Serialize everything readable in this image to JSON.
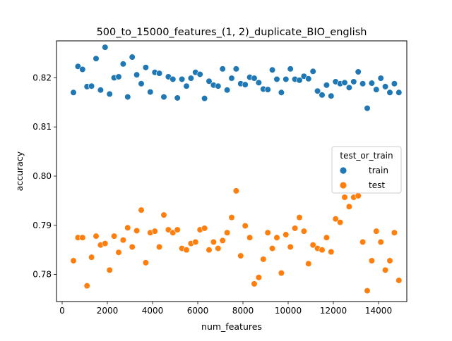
{
  "chart_data": {
    "type": "scatter",
    "title": "500_to_15000_features_(1, 2)_duplicate_BIO_english",
    "xlabel": "num_features",
    "ylabel": "accuracy",
    "xlim": [
      -250,
      15250
    ],
    "ylim": [
      0.7745,
      0.8275
    ],
    "xticks": [
      0,
      2000,
      4000,
      6000,
      8000,
      10000,
      12000,
      14000
    ],
    "xtick_labels": [
      "0",
      "2000",
      "4000",
      "6000",
      "8000",
      "10000",
      "12000",
      "14000"
    ],
    "yticks": [
      0.78,
      0.79,
      0.8,
      0.81,
      0.82
    ],
    "ytick_labels": [
      "0.78",
      "0.79",
      "0.80",
      "0.81",
      "0.82"
    ],
    "grid": false,
    "legend": {
      "title": "test_or_train",
      "placement": "center-right",
      "entries": [
        "train",
        "test"
      ]
    },
    "x": [
      500,
      700,
      900,
      1100,
      1300,
      1500,
      1700,
      1900,
      2100,
      2300,
      2500,
      2700,
      2900,
      3100,
      3300,
      3500,
      3700,
      3900,
      4100,
      4300,
      4500,
      4700,
      4900,
      5100,
      5300,
      5500,
      5700,
      5900,
      6100,
      6300,
      6500,
      6700,
      6900,
      7100,
      7300,
      7500,
      7700,
      7900,
      8100,
      8300,
      8500,
      8700,
      8900,
      9100,
      9300,
      9500,
      9700,
      9900,
      10100,
      10300,
      10500,
      10700,
      10900,
      11100,
      11300,
      11500,
      11700,
      11900,
      12100,
      12300,
      12500,
      12700,
      12900,
      13100,
      13300,
      13500,
      13700,
      13900,
      14100,
      14300,
      14500,
      14700,
      14900
    ],
    "series": [
      {
        "name": "train",
        "color": "#1f77b4",
        "values": [
          0.817,
          0.8223,
          0.8217,
          0.8182,
          0.8183,
          0.8239,
          0.8175,
          0.8262,
          0.8167,
          0.82,
          0.8202,
          0.8228,
          0.8161,
          0.8242,
          0.8206,
          0.8188,
          0.8221,
          0.8171,
          0.8211,
          0.8209,
          0.8161,
          0.8202,
          0.8197,
          0.8159,
          0.8197,
          0.8183,
          0.8199,
          0.8211,
          0.8207,
          0.8158,
          0.8193,
          0.8185,
          0.8183,
          0.8218,
          0.8175,
          0.8199,
          0.8218,
          0.8188,
          0.8186,
          0.8201,
          0.8199,
          0.819,
          0.8177,
          0.8176,
          0.8216,
          0.8197,
          0.817,
          0.8197,
          0.8218,
          0.8197,
          0.8195,
          0.8203,
          0.8198,
          0.8213,
          0.8173,
          0.8165,
          0.8185,
          0.8163,
          0.8192,
          0.8188,
          0.819,
          0.818,
          0.8192,
          0.8212,
          0.8188,
          0.8138,
          0.8189,
          0.8176,
          0.8199,
          0.8182,
          0.817,
          0.8188,
          0.817
        ]
      },
      {
        "name": "test",
        "color": "#ff7f0e",
        "values": [
          0.7828,
          0.7875,
          0.7875,
          0.7777,
          0.7835,
          0.7878,
          0.786,
          0.7863,
          0.7809,
          0.7878,
          0.7845,
          0.787,
          0.7895,
          0.7856,
          0.7889,
          0.7931,
          0.7824,
          0.7885,
          0.7888,
          0.7856,
          0.7921,
          0.7891,
          0.7885,
          0.7891,
          0.7853,
          0.785,
          0.7863,
          0.7866,
          0.7891,
          0.7894,
          0.785,
          0.7866,
          0.7853,
          0.7869,
          0.7885,
          0.7916,
          0.797,
          0.7838,
          0.7899,
          0.7875,
          0.7781,
          0.7794,
          0.7831,
          0.7885,
          0.7853,
          0.7875,
          0.7803,
          0.7881,
          0.7856,
          0.7894,
          0.7916,
          0.7888,
          0.7822,
          0.786,
          0.7853,
          0.785,
          0.7875,
          0.7846,
          0.7913,
          0.7906,
          0.7957,
          0.7938,
          0.7957,
          0.796,
          0.7866,
          0.7767,
          0.7828,
          0.7888,
          0.7866,
          0.7809,
          0.7828,
          0.7885,
          0.7788
        ]
      }
    ]
  }
}
